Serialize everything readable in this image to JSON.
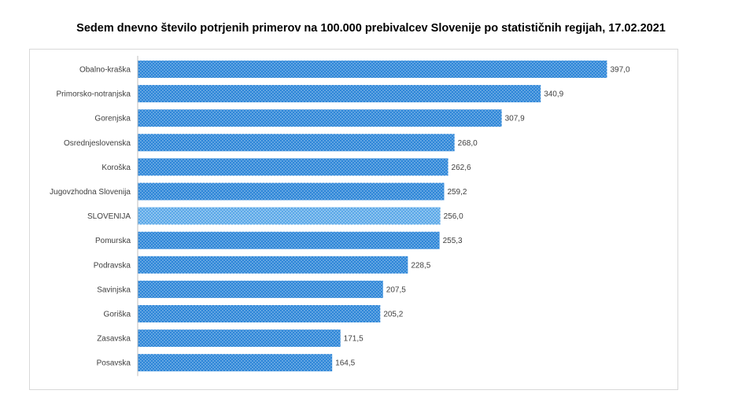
{
  "chart_data": {
    "type": "bar",
    "orientation": "horizontal",
    "title": "Sedem dnevno število potrjenih primerov na 100.000  prebivalcev Slovenije po statističnih regijah, 17.02.2021",
    "xlabel": "",
    "ylabel": "",
    "xlim": [
      0,
      400
    ],
    "grid": false,
    "categories": [
      "Obalno-kraška",
      "Primorsko-notranjska",
      "Gorenjska",
      "Osrednjeslovenska",
      "Koroška",
      "Jugovzhodna Slovenija",
      "SLOVENIJA",
      "Pomurska",
      "Podravska",
      "Savinjska",
      "Goriška",
      "Zasavska",
      "Posavska"
    ],
    "values": [
      397.0,
      340.9,
      307.9,
      268.0,
      262.6,
      259.2,
      256.0,
      255.3,
      228.5,
      207.5,
      205.2,
      171.5,
      164.5
    ],
    "value_labels": [
      "397,0",
      "340,9",
      "307,9",
      "268,0",
      "262,6",
      "259,2",
      "256,0",
      "255,3",
      "228,5",
      "207,5",
      "205,2",
      "171,5",
      "164,5"
    ],
    "highlight_category": "SLOVENIJA",
    "colors": {
      "bar": "#2e86d8",
      "bar_pattern_dots": "#d6e9f8",
      "highlight_bar": "#5aa8e8",
      "highlight_pattern_dots": "#ffffff",
      "axis": "#bfbfbf",
      "text": "#404040"
    }
  }
}
